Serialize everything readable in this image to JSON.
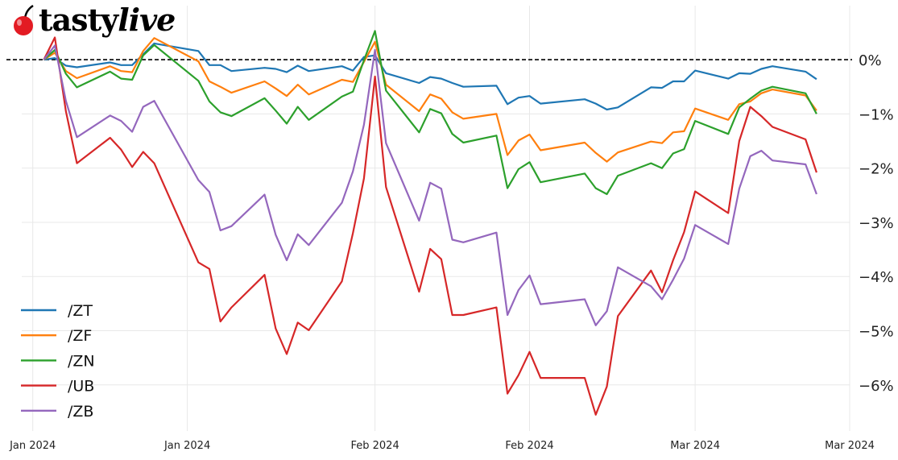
{
  "logo": {
    "brand": "tastylive",
    "part1": "tasty",
    "part2": "live"
  },
  "chart_data": {
    "type": "line",
    "title": "",
    "xlabel": "",
    "ylabel": "",
    "x_tick_values": [
      "2024-01-01",
      "2024-01-15",
      "2024-02-01",
      "2024-02-15",
      "2024-03-01",
      "2024-03-15"
    ],
    "x_tick_labels": [
      "Jan 2024",
      "Jan 2024",
      "Feb 2024",
      "Feb 2024",
      "Mar 2024",
      "Mar 2024"
    ],
    "xlim": [
      "2023-12-31",
      "2024-03-15"
    ],
    "y_ticks": [
      0,
      -1,
      -2,
      -3,
      -4,
      -5,
      -6
    ],
    "y_tick_labels": [
      "0%",
      "−1%",
      "−2%",
      "−3%",
      "−4%",
      "−5%",
      "−6%"
    ],
    "ylim": [
      -6.85,
      0.7
    ],
    "y_unit": "%",
    "y_axis_side": "right",
    "grid": true,
    "reference_line": {
      "y": 0,
      "style": "dashed",
      "color": "#000000"
    },
    "legend_placement": "bottom-left",
    "x": [
      "2024-01-02",
      "2024-01-03",
      "2024-01-04",
      "2024-01-05",
      "2024-01-08",
      "2024-01-09",
      "2024-01-10",
      "2024-01-11",
      "2024-01-12",
      "2024-01-16",
      "2024-01-17",
      "2024-01-18",
      "2024-01-19",
      "2024-01-22",
      "2024-01-23",
      "2024-01-24",
      "2024-01-25",
      "2024-01-26",
      "2024-01-29",
      "2024-01-30",
      "2024-01-31",
      "2024-02-01",
      "2024-02-02",
      "2024-02-05",
      "2024-02-06",
      "2024-02-07",
      "2024-02-08",
      "2024-02-09",
      "2024-02-12",
      "2024-02-13",
      "2024-02-14",
      "2024-02-15",
      "2024-02-16",
      "2024-02-20",
      "2024-02-21",
      "2024-02-22",
      "2024-02-23",
      "2024-02-26",
      "2024-02-27",
      "2024-02-28",
      "2024-02-29",
      "2024-03-01",
      "2024-03-04",
      "2024-03-05",
      "2024-03-06",
      "2024-03-07",
      "2024-03-08",
      "2024-03-11",
      "2024-03-12"
    ],
    "series": [
      {
        "name": "/ZT",
        "color": "#1f77b4",
        "values": [
          0,
          0.03,
          -0.11,
          -0.14,
          -0.05,
          -0.1,
          -0.1,
          0.1,
          0.3,
          0.16,
          -0.1,
          -0.1,
          -0.21,
          -0.15,
          -0.17,
          -0.23,
          -0.11,
          -0.21,
          -0.12,
          -0.2,
          0.05,
          0.08,
          -0.25,
          -0.43,
          -0.32,
          -0.35,
          -0.43,
          -0.5,
          -0.48,
          -0.82,
          -0.7,
          -0.67,
          -0.81,
          -0.73,
          -0.81,
          -0.92,
          -0.88,
          -0.51,
          -0.52,
          -0.4,
          -0.4,
          -0.2,
          -0.35,
          -0.25,
          -0.26,
          -0.17,
          -0.12,
          -0.22,
          -0.36
        ]
      },
      {
        "name": "/ZF",
        "color": "#ff7f0e",
        "values": [
          0,
          0.13,
          -0.21,
          -0.34,
          -0.12,
          -0.21,
          -0.23,
          0.16,
          0.4,
          -0.03,
          -0.4,
          -0.5,
          -0.61,
          -0.4,
          -0.53,
          -0.67,
          -0.46,
          -0.64,
          -0.37,
          -0.41,
          -0.04,
          0.33,
          -0.46,
          -0.95,
          -0.64,
          -0.72,
          -0.97,
          -1.09,
          -1.0,
          -1.76,
          -1.49,
          -1.38,
          -1.67,
          -1.53,
          -1.72,
          -1.88,
          -1.71,
          -1.51,
          -1.54,
          -1.34,
          -1.32,
          -0.9,
          -1.11,
          -0.82,
          -0.77,
          -0.62,
          -0.55,
          -0.66,
          -0.94
        ]
      },
      {
        "name": "/ZN",
        "color": "#2ca02c",
        "values": [
          0,
          0.18,
          -0.26,
          -0.51,
          -0.22,
          -0.35,
          -0.37,
          0.08,
          0.27,
          -0.39,
          -0.77,
          -0.97,
          -1.04,
          -0.71,
          -0.94,
          -1.18,
          -0.87,
          -1.11,
          -0.68,
          -0.59,
          -0.01,
          0.53,
          -0.57,
          -1.34,
          -0.91,
          -0.99,
          -1.37,
          -1.53,
          -1.4,
          -2.37,
          -2.02,
          -1.89,
          -2.26,
          -2.1,
          -2.37,
          -2.48,
          -2.14,
          -1.91,
          -2.0,
          -1.73,
          -1.65,
          -1.13,
          -1.37,
          -0.88,
          -0.72,
          -0.57,
          -0.5,
          -0.62,
          -1.0
        ]
      },
      {
        "name": "/UB",
        "color": "#d62728",
        "values": [
          0,
          0.41,
          -0.95,
          -1.91,
          -1.44,
          -1.66,
          -1.98,
          -1.7,
          -1.91,
          -3.74,
          -3.86,
          -4.83,
          -4.57,
          -3.97,
          -4.96,
          -5.43,
          -4.85,
          -4.99,
          -4.09,
          -3.2,
          -2.19,
          -0.31,
          -2.35,
          -4.28,
          -3.49,
          -3.68,
          -4.71,
          -4.71,
          -4.57,
          -6.16,
          -5.82,
          -5.39,
          -5.87,
          -5.87,
          -6.55,
          -6.03,
          -4.73,
          -3.89,
          -4.29,
          -3.7,
          -3.18,
          -2.43,
          -2.83,
          -1.5,
          -0.87,
          -1.04,
          -1.24,
          -1.47,
          -2.08
        ]
      },
      {
        "name": "/ZB",
        "color": "#9467bd",
        "values": [
          0,
          0.26,
          -0.76,
          -1.43,
          -1.03,
          -1.13,
          -1.33,
          -0.87,
          -0.76,
          -2.22,
          -2.44,
          -3.15,
          -3.07,
          -2.49,
          -3.23,
          -3.7,
          -3.22,
          -3.42,
          -2.64,
          -2.06,
          -1.2,
          0.18,
          -1.54,
          -2.97,
          -2.27,
          -2.38,
          -3.32,
          -3.37,
          -3.19,
          -4.71,
          -4.25,
          -3.98,
          -4.51,
          -4.42,
          -4.9,
          -4.64,
          -3.83,
          -4.18,
          -4.42,
          -4.06,
          -3.67,
          -3.05,
          -3.4,
          -2.38,
          -1.78,
          -1.68,
          -1.86,
          -1.93,
          -2.48
        ]
      }
    ]
  }
}
